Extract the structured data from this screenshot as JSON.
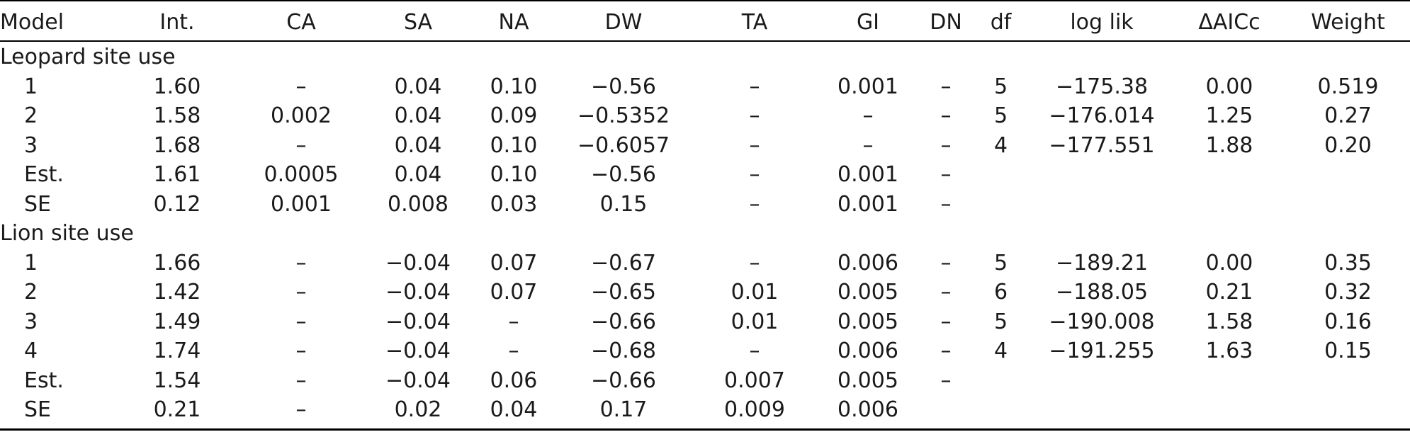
{
  "headers": [
    "Model",
    "Int.",
    "CA",
    "SA",
    "NA",
    "DW",
    "TA",
    "GI",
    "DN",
    "df",
    "log lik",
    "ΔAICc",
    "Weight"
  ],
  "sections": [
    {
      "title": "Leopard site use",
      "rows": [
        [
          "1",
          "1.60",
          "–",
          "0.04",
          "0.10",
          "−0.56",
          "–",
          "0.001",
          "–",
          "5",
          "−175.38",
          "0.00",
          "0.519"
        ],
        [
          "2",
          "1.58",
          "0.002",
          "0.04",
          "0.09",
          "−0.5352",
          "–",
          "–",
          "–",
          "5",
          "−176.014",
          "1.25",
          "0.27"
        ],
        [
          "3",
          "1.68",
          "–",
          "0.04",
          "0.10",
          "−0.6057",
          "–",
          "–",
          "–",
          "4",
          "−177.551",
          "1.88",
          "0.20"
        ],
        [
          "Est.",
          "1.61",
          "0.0005",
          "0.04",
          "0.10",
          "−0.56",
          "–",
          "0.001",
          "–",
          "",
          "",
          "",
          ""
        ],
        [
          "SE",
          "0.12",
          "0.001",
          "0.008",
          "0.03",
          "0.15",
          "–",
          "0.001",
          "–",
          "",
          "",
          "",
          ""
        ]
      ]
    },
    {
      "title": "Lion site use",
      "rows": [
        [
          "1",
          "1.66",
          "–",
          "−0.04",
          "0.07",
          "−0.67",
          "–",
          "0.006",
          "–",
          "5",
          "−189.21",
          "0.00",
          "0.35"
        ],
        [
          "2",
          "1.42",
          "–",
          "−0.04",
          "0.07",
          "−0.65",
          "0.01",
          "0.005",
          "–",
          "6",
          "−188.05",
          "0.21",
          "0.32"
        ],
        [
          "3",
          "1.49",
          "–",
          "−0.04",
          "–",
          "−0.66",
          "0.01",
          "0.005",
          "–",
          "5",
          "−190.008",
          "1.58",
          "0.16"
        ],
        [
          "4",
          "1.74",
          "–",
          "−0.04",
          "–",
          "−0.68",
          "–",
          "0.006",
          "–",
          "4",
          "−191.255",
          "1.63",
          "0.15"
        ],
        [
          "Est.",
          "1.54",
          "–",
          "−0.04",
          "0.06",
          "−0.66",
          "0.007",
          "0.005",
          "–",
          "",
          "",
          "",
          ""
        ],
        [
          "SE",
          "0.21",
          "–",
          "0.02",
          "0.04",
          "0.17",
          "0.009",
          "0.006",
          "",
          "",
          "",
          "",
          ""
        ]
      ]
    }
  ]
}
